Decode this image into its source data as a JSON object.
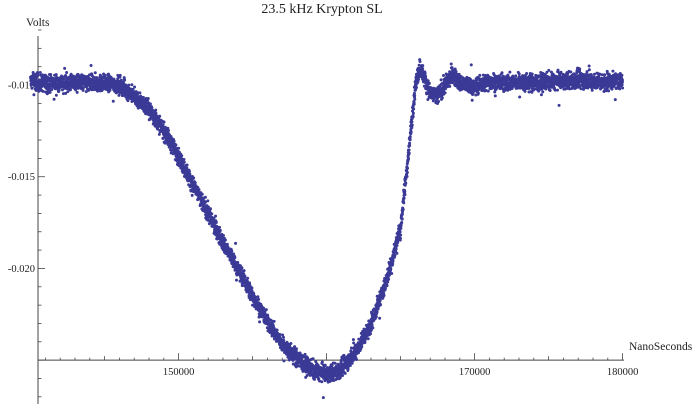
{
  "chart_data": {
    "type": "scatter",
    "title": "23.5 kHz Krypton SL",
    "xlabel": "NanoSeconds",
    "ylabel": "Volts",
    "xlim": [
      140500,
      180500
    ],
    "ylim": [
      -0.0275,
      -0.007
    ],
    "x_axis_crossing_y": -0.025,
    "x_ticks": [
      150000,
      160000,
      170000,
      180000
    ],
    "x_tick_labels": [
      "150000",
      "160000",
      "170000",
      "180000"
    ],
    "y_ticks": [
      -0.01,
      -0.015,
      -0.02
    ],
    "y_tick_labels": [
      "-0.010",
      "-0.015",
      "-0.020"
    ],
    "grid": false,
    "legend": "none",
    "marker_color": "#3b3a96",
    "x_range_of_points": [
      140000,
      180000
    ],
    "series": [
      {
        "points": [
          [
            140000,
            -0.0098
          ],
          [
            141000,
            -0.0099
          ],
          [
            142000,
            -0.0099
          ],
          [
            143000,
            -0.0099
          ],
          [
            144000,
            -0.0099
          ],
          [
            145000,
            -0.0099
          ],
          [
            146000,
            -0.01
          ],
          [
            147000,
            -0.0106
          ],
          [
            148000,
            -0.0113
          ],
          [
            149000,
            -0.0125
          ],
          [
            150000,
            -0.0139
          ],
          [
            151000,
            -0.0155
          ],
          [
            152000,
            -0.017
          ],
          [
            153000,
            -0.0186
          ],
          [
            154000,
            -0.02
          ],
          [
            155000,
            -0.0215
          ],
          [
            156000,
            -0.0229
          ],
          [
            157000,
            -0.0241
          ],
          [
            158000,
            -0.0249
          ],
          [
            159000,
            -0.0255
          ],
          [
            160000,
            -0.0258
          ],
          [
            161000,
            -0.0255
          ],
          [
            162000,
            -0.0245
          ],
          [
            163000,
            -0.023
          ],
          [
            164000,
            -0.0208
          ],
          [
            165000,
            -0.0178
          ],
          [
            165500,
            -0.014
          ],
          [
            166000,
            -0.01
          ],
          [
            166300,
            -0.009
          ],
          [
            166700,
            -0.0098
          ],
          [
            167000,
            -0.0105
          ],
          [
            167500,
            -0.0106
          ],
          [
            168000,
            -0.01
          ],
          [
            168500,
            -0.0094
          ],
          [
            169000,
            -0.0099
          ],
          [
            170000,
            -0.0101
          ],
          [
            171000,
            -0.0098
          ],
          [
            172000,
            -0.0099
          ],
          [
            173000,
            -0.0098
          ],
          [
            174000,
            -0.0099
          ],
          [
            175000,
            -0.0098
          ],
          [
            176000,
            -0.0098
          ],
          [
            177000,
            -0.0097
          ],
          [
            178000,
            -0.0098
          ],
          [
            179000,
            -0.0098
          ],
          [
            180000,
            -0.0098
          ]
        ],
        "noise_spread_volts": 0.0006
      }
    ]
  }
}
